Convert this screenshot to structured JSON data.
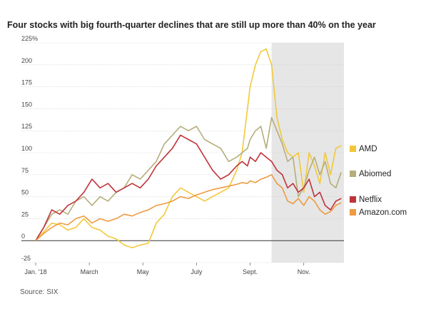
{
  "title": "Four stocks with big fourth-quarter declines that are still up more than 40% on the year",
  "source": "Source: SIX",
  "chart_data": {
    "type": "line",
    "title": "Four stocks with big fourth-quarter declines that are still up more than 40% on the year",
    "ylabel": "",
    "xlabel": "",
    "ylim": [
      -25,
      225
    ],
    "y_ticks": [
      "225%",
      "200",
      "175",
      "150",
      "125",
      "100",
      "75",
      "50",
      "25",
      "0",
      "-25"
    ],
    "y_tick_values": [
      225,
      200,
      175,
      150,
      125,
      100,
      75,
      50,
      25,
      0,
      -25
    ],
    "x_ticks": [
      "Jan. '18",
      "March",
      "May",
      "July",
      "Sept.",
      "Nov."
    ],
    "x_tick_positions": [
      0,
      2,
      4,
      6,
      8,
      10
    ],
    "xlim": [
      0,
      11.5
    ],
    "shaded_region": [
      8.8,
      11.5
    ],
    "grid": true,
    "legend_placement": "right",
    "series": [
      {
        "name": "AMD",
        "color": "#f2c83a",
        "x": [
          0,
          0.3,
          0.6,
          0.9,
          1.2,
          1.5,
          1.8,
          2.1,
          2.4,
          2.7,
          3.0,
          3.3,
          3.6,
          3.9,
          4.2,
          4.5,
          4.8,
          5.1,
          5.4,
          5.7,
          6.0,
          6.3,
          6.6,
          6.9,
          7.2,
          7.5,
          7.7,
          7.9,
          8.0,
          8.2,
          8.4,
          8.6,
          8.8,
          9.0,
          9.2,
          9.4,
          9.6,
          9.8,
          10.0,
          10.2,
          10.4,
          10.6,
          10.8,
          11.0,
          11.2,
          11.4
        ],
        "values": [
          0,
          10,
          20,
          18,
          12,
          15,
          25,
          15,
          12,
          5,
          2,
          -5,
          -8,
          -5,
          -3,
          20,
          30,
          50,
          60,
          55,
          50,
          45,
          50,
          55,
          60,
          80,
          100,
          150,
          175,
          200,
          215,
          218,
          200,
          140,
          115,
          100,
          95,
          100,
          55,
          100,
          85,
          65,
          100,
          75,
          105,
          108
        ]
      },
      {
        "name": "Abiomed",
        "color": "#b5ae7a",
        "x": [
          0,
          0.3,
          0.6,
          0.9,
          1.2,
          1.5,
          1.8,
          2.1,
          2.4,
          2.7,
          3.0,
          3.3,
          3.6,
          3.9,
          4.2,
          4.5,
          4.8,
          5.1,
          5.4,
          5.7,
          6.0,
          6.3,
          6.6,
          6.9,
          7.2,
          7.5,
          7.7,
          7.9,
          8.0,
          8.2,
          8.4,
          8.6,
          8.8,
          9.0,
          9.2,
          9.4,
          9.6,
          9.8,
          10.0,
          10.2,
          10.4,
          10.6,
          10.8,
          11.0,
          11.2,
          11.4
        ],
        "values": [
          0,
          15,
          30,
          35,
          30,
          45,
          50,
          40,
          50,
          45,
          55,
          60,
          75,
          70,
          80,
          90,
          110,
          120,
          130,
          125,
          130,
          115,
          110,
          105,
          90,
          95,
          100,
          105,
          115,
          125,
          130,
          105,
          140,
          125,
          110,
          90,
          95,
          50,
          60,
          80,
          95,
          75,
          90,
          65,
          60,
          78
        ]
      },
      {
        "name": "Netflix",
        "color": "#c0333a",
        "x": [
          0,
          0.3,
          0.6,
          0.9,
          1.2,
          1.5,
          1.8,
          2.1,
          2.4,
          2.7,
          3.0,
          3.3,
          3.6,
          3.9,
          4.2,
          4.5,
          4.8,
          5.1,
          5.4,
          5.7,
          6.0,
          6.3,
          6.6,
          6.9,
          7.2,
          7.5,
          7.7,
          7.9,
          8.0,
          8.2,
          8.4,
          8.6,
          8.8,
          9.0,
          9.2,
          9.4,
          9.6,
          9.8,
          10.0,
          10.2,
          10.4,
          10.6,
          10.8,
          11.0,
          11.2,
          11.4
        ],
        "values": [
          0,
          15,
          35,
          30,
          40,
          45,
          55,
          70,
          60,
          65,
          55,
          60,
          65,
          60,
          70,
          85,
          95,
          105,
          120,
          115,
          110,
          95,
          80,
          70,
          75,
          85,
          90,
          85,
          95,
          90,
          100,
          95,
          90,
          80,
          75,
          60,
          65,
          55,
          60,
          70,
          50,
          55,
          40,
          35,
          45,
          48
        ]
      },
      {
        "name": "Amazon.com",
        "color": "#ed9b41",
        "x": [
          0,
          0.3,
          0.6,
          0.9,
          1.2,
          1.5,
          1.8,
          2.1,
          2.4,
          2.7,
          3.0,
          3.3,
          3.6,
          3.9,
          4.2,
          4.5,
          4.8,
          5.1,
          5.4,
          5.7,
          6.0,
          6.3,
          6.6,
          6.9,
          7.2,
          7.5,
          7.7,
          7.9,
          8.0,
          8.2,
          8.4,
          8.6,
          8.8,
          9.0,
          9.2,
          9.4,
          9.6,
          9.8,
          10.0,
          10.2,
          10.4,
          10.6,
          10.8,
          11.0,
          11.2,
          11.4
        ],
        "values": [
          0,
          8,
          15,
          20,
          18,
          25,
          28,
          20,
          25,
          22,
          25,
          30,
          28,
          32,
          35,
          40,
          42,
          45,
          50,
          48,
          52,
          55,
          58,
          60,
          62,
          64,
          66,
          65,
          68,
          66,
          70,
          72,
          75,
          65,
          60,
          45,
          42,
          48,
          40,
          50,
          45,
          35,
          30,
          33,
          40,
          43
        ]
      }
    ]
  }
}
